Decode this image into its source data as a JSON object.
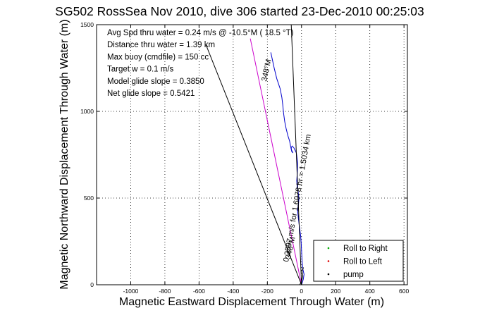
{
  "chart_data": {
    "type": "line",
    "title": "SG502 RossSea Nov 2010, dive 306 started 23-Dec-2010 00:25:03",
    "xlabel": "Magnetic Eastward Displacement Through Water (m)",
    "ylabel": "Magnetic Northward Displacement Through Water (m)",
    "xlim": [
      -1200,
      620
    ],
    "ylim": [
      0,
      1500
    ],
    "xticks": [
      -1000,
      -800,
      -600,
      -400,
      -200,
      0,
      200,
      400,
      600
    ],
    "xtick_labels": [
      "-1000",
      "-800",
      "-600",
      "-400",
      "-200",
      "0",
      "200",
      "400",
      "600"
    ],
    "yticks": [
      0,
      500,
      1000,
      1500
    ],
    "ytick_labels": [
      "0",
      "500",
      "1000",
      "1500"
    ],
    "grid": true,
    "annotations": [
      "Avg Spd thru water =  0.24 m/s @ -10.5°M ( 18.5 °T)",
      "Distance thru water =  1.39 km",
      "Max buoy (cmdfile) = 150 cc",
      "Target w = 0.1 m/s",
      "Model glide slope = 0.3850",
      "Net glide slope = 0.5421"
    ],
    "segment_labels": {
      "heading_upper": "348°M",
      "heading_lower": "348°M",
      "speed": "0.2597 m/s for 1.6078 hr = 1.5034 km"
    },
    "series": [
      {
        "name": "",
        "color": "#0000cc",
        "x": [
          0,
          10,
          15,
          8,
          4,
          2,
          0,
          -2,
          -5,
          -10,
          -18,
          -22,
          -18,
          -15,
          -20,
          -25,
          -28,
          -25,
          -22,
          -30,
          -40,
          -45,
          -55,
          -60,
          -58,
          -50,
          -60,
          -70,
          -80,
          -90,
          -98,
          -105,
          -110,
          -115,
          -125,
          -145,
          -160,
          -180
        ],
        "y": [
          0,
          30,
          60,
          90,
          130,
          160,
          200,
          240,
          280,
          320,
          380,
          420,
          460,
          500,
          540,
          560,
          600,
          640,
          700,
          760,
          780,
          790,
          800,
          790,
          770,
          760,
          780,
          830,
          860,
          900,
          940,
          990,
          1040,
          1080,
          1130,
          1190,
          1250,
          1340
        ]
      },
      {
        "name": "",
        "color": "#cc00cc",
        "x": [
          0,
          -300
        ],
        "y": [
          0,
          1420
        ]
      },
      {
        "name": "",
        "color": "#000000",
        "x": [
          0,
          -60
        ],
        "y": [
          0,
          1500
        ]
      },
      {
        "name": "",
        "color": "#000000",
        "x": [
          0,
          -560
        ],
        "y": [
          0,
          1385
        ]
      },
      {
        "name": "",
        "color": "#000000",
        "x": [
          -10,
          0,
          8,
          3,
          12
        ],
        "y": [
          0,
          20,
          50,
          80,
          100
        ]
      }
    ],
    "legend": {
      "placement": "bottom-right",
      "entries": [
        {
          "label": "Roll to Right",
          "color": "#00aa00",
          "marker": "dot"
        },
        {
          "label": "Roll to Left",
          "color": "#dd0000",
          "marker": "dot"
        },
        {
          "label": "pump",
          "color": "#000000",
          "marker": "dot"
        }
      ]
    }
  }
}
